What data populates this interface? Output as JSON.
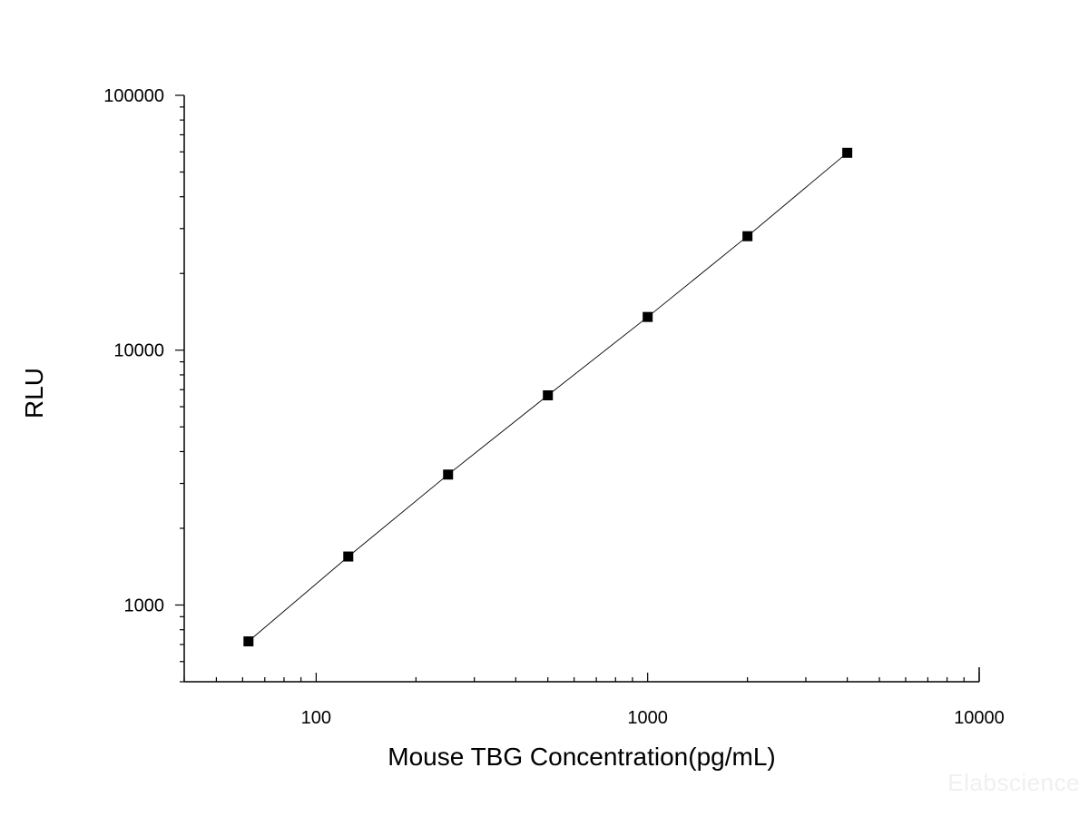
{
  "chart_data": {
    "type": "scatter",
    "title": "",
    "xlabel": "Mouse TBG Concentration(pg/mL)",
    "ylabel": "RLU",
    "x_scale": "log",
    "y_scale": "log",
    "xlim": [
      40,
      10000
    ],
    "ylim": [
      500,
      100000
    ],
    "x_ticks": [
      "100",
      "1000",
      "10000"
    ],
    "y_ticks": [
      "1000",
      "10000",
      "100000"
    ],
    "grid": false,
    "legend": "none",
    "series": [
      {
        "marker": "square",
        "connected": true,
        "color": "#000000",
        "x": [
          62.5,
          125,
          250,
          500,
          1000,
          2000,
          4000
        ],
        "y": [
          720,
          1550,
          3250,
          6650,
          13500,
          28000,
          59500
        ]
      }
    ]
  },
  "watermark": "Elabscience"
}
